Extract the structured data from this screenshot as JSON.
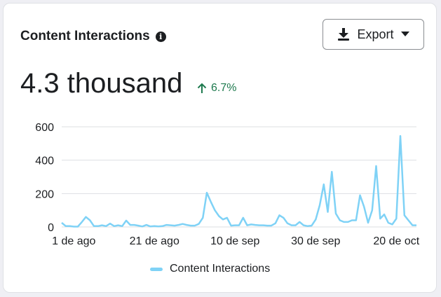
{
  "card": {
    "title": "Content Interactions",
    "info_icon": "info-icon",
    "export_label": "Export",
    "export_icon": "download-icon",
    "export_caret_icon": "caret-down-icon",
    "total": "4.3 thousand",
    "delta_icon": "arrow-up-icon",
    "delta": "6.7%"
  },
  "colors": {
    "series": "#7fd2f6",
    "positive": "#1e7a4e",
    "grid": "#dddfe2",
    "text": "#1c1e21"
  },
  "chart_data": {
    "type": "line",
    "ylim": [
      0,
      600
    ],
    "yticks": [
      "600",
      "400",
      "200",
      "0"
    ],
    "ytick_values": [
      600,
      400,
      200,
      0
    ],
    "xtick_labels": [
      "1 de ago",
      "21 de ago",
      "10 de sep",
      "30 de sep",
      "20 de oct"
    ],
    "xtick_index": [
      3,
      23,
      43,
      63,
      83
    ],
    "grid": true,
    "legend_position": "bottom",
    "series": [
      {
        "name": "Content Interactions",
        "values": [
          25,
          5,
          5,
          2,
          2,
          30,
          60,
          40,
          5,
          5,
          10,
          5,
          20,
          5,
          10,
          5,
          38,
          12,
          12,
          8,
          3,
          12,
          3,
          5,
          3,
          5,
          12,
          10,
          8,
          12,
          18,
          12,
          8,
          8,
          18,
          55,
          205,
          150,
          100,
          65,
          45,
          55,
          8,
          10,
          10,
          55,
          10,
          15,
          12,
          10,
          10,
          8,
          8,
          22,
          70,
          55,
          22,
          10,
          10,
          30,
          10,
          5,
          8,
          45,
          130,
          255,
          90,
          330,
          80,
          40,
          30,
          30,
          40,
          40,
          190,
          120,
          25,
          100,
          365,
          50,
          75,
          25,
          15,
          50,
          545,
          70,
          40,
          10,
          10
        ]
      }
    ]
  },
  "legend": {
    "label": "Content Interactions"
  }
}
